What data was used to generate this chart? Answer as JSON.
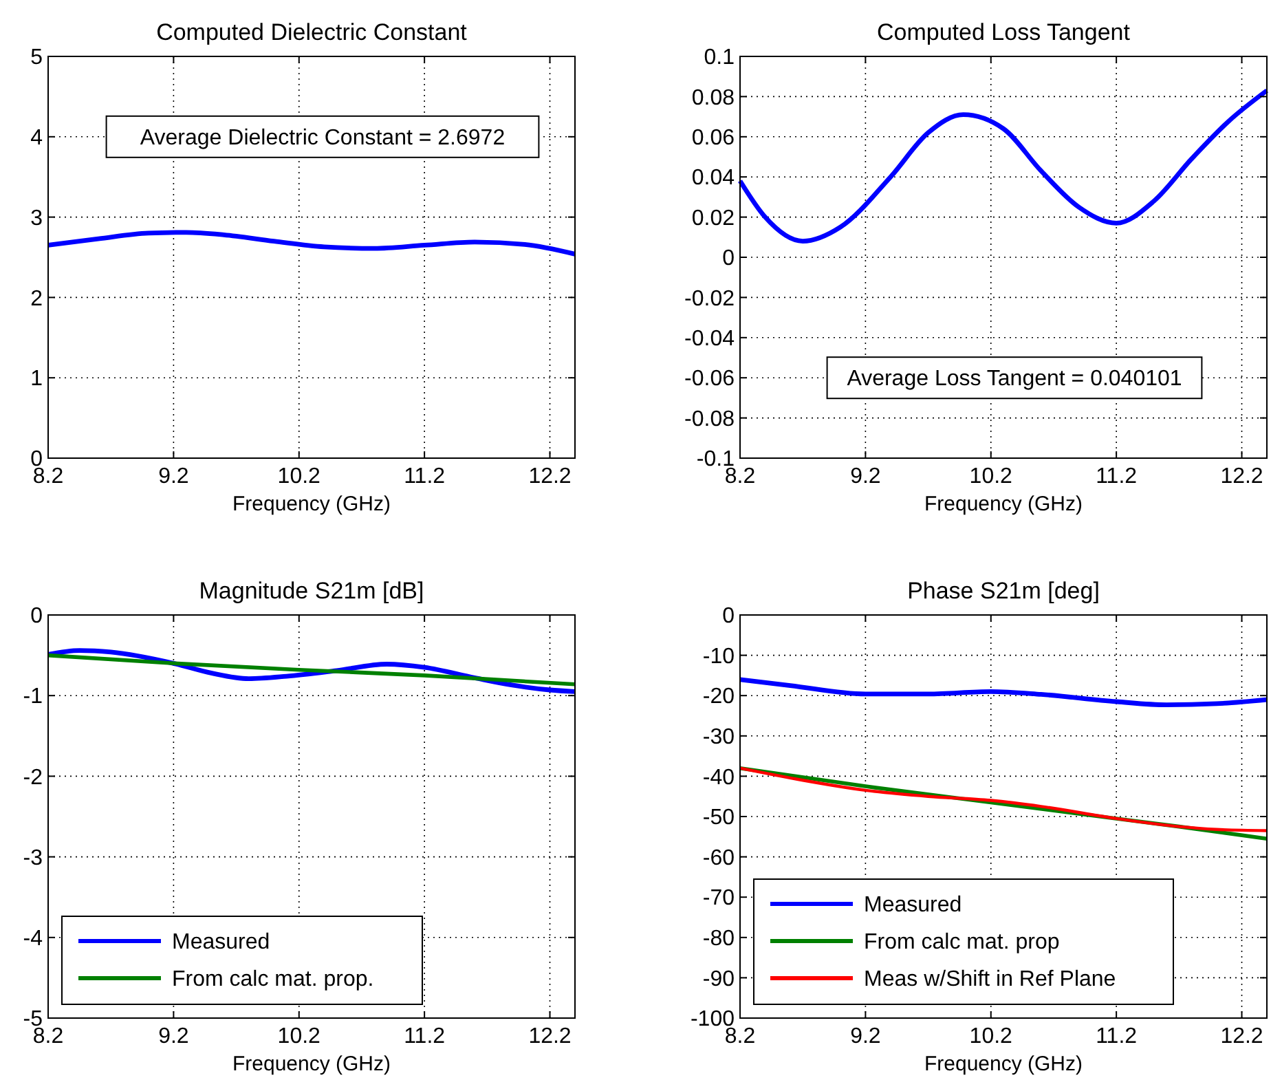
{
  "chart_data": [
    {
      "type": "line",
      "title": "Computed Dielectric Constant",
      "xlabel": "Frequency (GHz)",
      "xlim": [
        8.2,
        12.4
      ],
      "xticks": [
        8.2,
        9.2,
        10.2,
        11.2,
        12.2
      ],
      "ylim": [
        0,
        5
      ],
      "yticks": [
        0,
        1,
        2,
        3,
        4,
        5
      ],
      "grid": true,
      "annotations": [
        "Average Dielectric Constant = 2.6972"
      ],
      "series": [
        {
          "color": "#0000ff",
          "x": [
            8.2,
            8.6,
            9.0,
            9.3,
            9.6,
            10.0,
            10.4,
            10.8,
            11.2,
            11.6,
            12.0,
            12.4
          ],
          "values": [
            2.65,
            2.73,
            2.8,
            2.81,
            2.78,
            2.7,
            2.63,
            2.61,
            2.65,
            2.69,
            2.66,
            2.54
          ]
        }
      ]
    },
    {
      "type": "line",
      "title": "Computed Loss Tangent",
      "xlabel": "Frequency (GHz)",
      "xlim": [
        8.2,
        12.4
      ],
      "xticks": [
        8.2,
        9.2,
        10.2,
        11.2,
        12.2
      ],
      "ylim": [
        -0.1,
        0.1
      ],
      "yticks": [
        -0.1,
        -0.08,
        -0.06,
        -0.04,
        -0.02,
        0,
        0.02,
        0.04,
        0.06,
        0.08,
        0.1
      ],
      "grid": true,
      "annotations": [
        "Average Loss Tangent = 0.040101"
      ],
      "series": [
        {
          "color": "#0000ff",
          "x": [
            8.2,
            8.4,
            8.7,
            9.0,
            9.4,
            9.7,
            9.98,
            10.3,
            10.6,
            10.9,
            11.2,
            11.5,
            11.8,
            12.1,
            12.4
          ],
          "values": [
            0.038,
            0.02,
            0.008,
            0.015,
            0.04,
            0.062,
            0.071,
            0.064,
            0.043,
            0.025,
            0.017,
            0.028,
            0.049,
            0.068,
            0.083
          ]
        }
      ]
    },
    {
      "type": "line",
      "title": "Magnitude S21m [dB]",
      "xlabel": "Frequency (GHz)",
      "xlim": [
        8.2,
        12.4
      ],
      "xticks": [
        8.2,
        9.2,
        10.2,
        11.2,
        12.2
      ],
      "ylim": [
        -5,
        0
      ],
      "yticks": [
        -5,
        -4,
        -3,
        -2,
        -1,
        0
      ],
      "grid": true,
      "legend": "bottom left",
      "series": [
        {
          "name": "Measured",
          "color": "#0000ff",
          "x": [
            8.2,
            8.45,
            8.7,
            9.2,
            9.5,
            9.8,
            10.1,
            10.5,
            10.9,
            11.2,
            11.6,
            11.9,
            12.2,
            12.4
          ],
          "values": [
            -0.49,
            -0.44,
            -0.46,
            -0.6,
            -0.72,
            -0.79,
            -0.76,
            -0.69,
            -0.61,
            -0.65,
            -0.78,
            -0.87,
            -0.93,
            -0.95
          ]
        },
        {
          "name": "From calc mat. prop.",
          "color": "#008000",
          "x": [
            8.2,
            9.2,
            10.2,
            11.2,
            12.4
          ],
          "values": [
            -0.5,
            -0.6,
            -0.68,
            -0.75,
            -0.86
          ]
        }
      ]
    },
    {
      "type": "line",
      "title": "Phase S21m [deg]",
      "xlabel": "Frequency (GHz)",
      "xlim": [
        8.2,
        12.4
      ],
      "xticks": [
        8.2,
        9.2,
        10.2,
        11.2,
        12.2
      ],
      "ylim": [
        -100,
        0
      ],
      "yticks": [
        -100,
        -90,
        -80,
        -70,
        -60,
        -50,
        -40,
        -30,
        -20,
        -10,
        0
      ],
      "grid": true,
      "legend": "bottom left",
      "series": [
        {
          "name": "Measured",
          "color": "#0000ff",
          "x": [
            8.2,
            8.6,
            9.2,
            9.7,
            10.2,
            10.6,
            11.2,
            11.6,
            12.0,
            12.4
          ],
          "values": [
            -16,
            -17.5,
            -19.6,
            -19.6,
            -19,
            -19.7,
            -21.5,
            -22.3,
            -22,
            -21
          ]
        },
        {
          "name": "From calc mat. prop",
          "color": "#008000",
          "x": [
            8.2,
            9.2,
            10.2,
            11.2,
            11.7,
            12.4
          ],
          "values": [
            -38,
            -42.5,
            -46.5,
            -50.5,
            -52.5,
            -55.5
          ]
        },
        {
          "name": "Meas w/Shift in Ref Plane",
          "color": "#ff0000",
          "x": [
            8.2,
            8.7,
            9.2,
            9.7,
            10.2,
            10.6,
            11.2,
            11.7,
            12.0,
            12.4
          ],
          "values": [
            -38,
            -41,
            -43.5,
            -45,
            -46,
            -47.5,
            -50.5,
            -52.5,
            -53.2,
            -53.5
          ]
        }
      ]
    }
  ]
}
